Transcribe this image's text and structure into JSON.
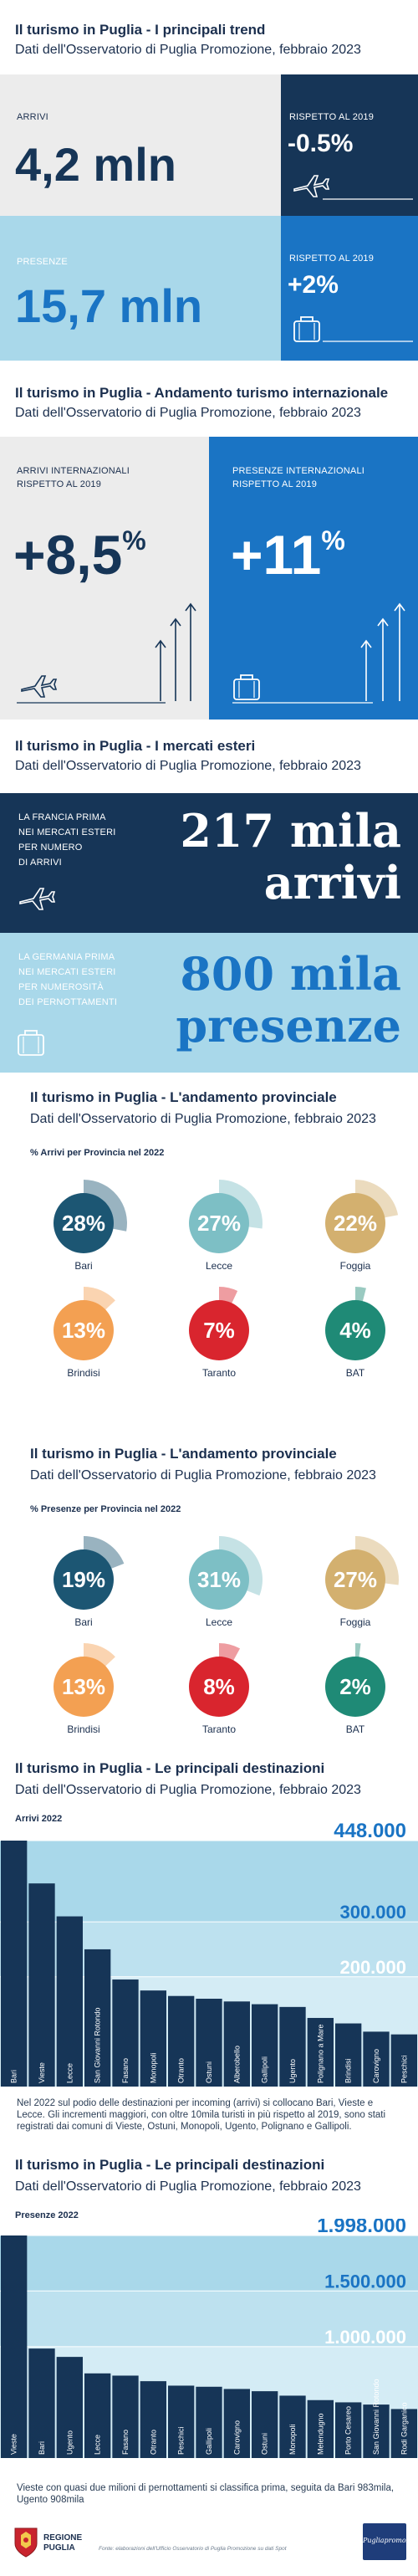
{
  "colors": {
    "navy": "#163557",
    "blue": "#1a74c4",
    "light_blue": "#a9d8ea",
    "pale_grey": "#ececec",
    "bari": "#1c5673",
    "lecce": "#7dbfc5",
    "foggia": "#d3b06f",
    "brindisi": "#f3a052",
    "taranto": "#d9252e",
    "bat": "#1f8a76"
  },
  "section1": {
    "title": "Il turismo in Puglia - I principali trend",
    "subtitle": "Dati dell'Osservatorio di Puglia Promozione, febbraio 2023",
    "arrivi_label": "ARRIVI",
    "arrivi_value": "4,2 mln",
    "arrivi_delta_label": "RISPETTO AL 2019",
    "arrivi_delta_value": "-0.5%",
    "presenze_label": "PRESENZE",
    "presenze_value": "15,7 mln",
    "presenze_delta_label": "RISPETTO AL 2019",
    "presenze_delta_value": "+2%"
  },
  "section2": {
    "title": "Il turismo in Puglia - Andamento turismo internazionale",
    "subtitle": "Dati dell'Osservatorio di Puglia Promozione, febbraio 2023",
    "arrivi_label_1": "ARRIVI INTERNAZIONALI",
    "arrivi_label_2": "RISPETTO AL 2019",
    "arrivi_value": "+8,5",
    "arrivi_pct": "%",
    "presenze_label_1": "PRESENZE INTERNAZIONALI",
    "presenze_label_2": "RISPETTO AL 2019",
    "presenze_value": "+11",
    "presenze_pct": "%"
  },
  "section3": {
    "title": "Il turismo in Puglia - I mercati esteri",
    "subtitle": "Dati dell'Osservatorio di Puglia Promozione, febbraio 2023",
    "francia_lines": [
      "LA FRANCIA PRIMA",
      "NEI MERCATI ESTERI",
      "PER NUMERO",
      "DI ARRIVI"
    ],
    "francia_value_1": "217 mila",
    "francia_value_2": "arrivi",
    "germania_lines": [
      "LA GERMANIA PRIMA",
      "NEI MERCATI ESTERI",
      "PER NUMEROSITÀ",
      "DEI PERNOTTAMENTI"
    ],
    "germania_value_1": "800 mila",
    "germania_value_2": "presenze"
  },
  "section4": {
    "title": "Il turismo in Puglia - L'andamento provinciale",
    "subtitle": "Dati dell'Osservatorio di Puglia Promozione, febbraio 2023",
    "caption": "% Arrivi per Provincia nel 2022",
    "provinces": [
      {
        "name": "Bari",
        "value": "28%",
        "pct": 28,
        "color": "#1c5673"
      },
      {
        "name": "Lecce",
        "value": "27%",
        "pct": 27,
        "color": "#7dbfc5"
      },
      {
        "name": "Foggia",
        "value": "22%",
        "pct": 22,
        "color": "#d3b06f"
      },
      {
        "name": "Brindisi",
        "value": "13%",
        "pct": 13,
        "color": "#f3a052"
      },
      {
        "name": "Taranto",
        "value": "7%",
        "pct": 7,
        "color": "#d9252e"
      },
      {
        "name": "BAT",
        "value": "4%",
        "pct": 4,
        "color": "#1f8a76"
      }
    ]
  },
  "section5": {
    "title": "Il turismo in Puglia - L'andamento provinciale",
    "subtitle": "Dati dell'Osservatorio di Puglia Promozione, febbraio 2023",
    "caption": "% Presenze per Provincia nel 2022",
    "provinces": [
      {
        "name": "Bari",
        "value": "19%",
        "pct": 19,
        "color": "#1c5673"
      },
      {
        "name": "Lecce",
        "value": "31%",
        "pct": 31,
        "color": "#7dbfc5"
      },
      {
        "name": "Foggia",
        "value": "27%",
        "pct": 27,
        "color": "#d3b06f"
      },
      {
        "name": "Brindisi",
        "value": "13%",
        "pct": 13,
        "color": "#f3a052"
      },
      {
        "name": "Taranto",
        "value": "8%",
        "pct": 8,
        "color": "#d9252e"
      },
      {
        "name": "BAT",
        "value": "2%",
        "pct": 2,
        "color": "#1f8a76"
      }
    ]
  },
  "section6": {
    "title": "Il turismo in Puglia - Le principali destinazioni",
    "subtitle": "Dati dell'Osservatorio di Puglia Promozione, febbraio 2023",
    "caption": "Arrivi 2022",
    "description": "Nel 2022 sul podio delle destinazioni per incoming (arrivi) si collocano Bari, Vieste e Lecce. Gli incrementi maggiori, con oltre 10mila turisti in più rispetto al 2019, sono stati registrati dai comuni di Vieste, Ostuni, Monopoli, Ugento, Polignano e Gallipoli."
  },
  "section7": {
    "title": "Il turismo in Puglia - Le principali destinazioni",
    "subtitle": "Dati dell'Osservatorio di Puglia Promozione, febbraio 2023",
    "caption": "Presenze 2022",
    "description": "Vieste con quasi due milioni di pernottamenti si classifica prima, seguita da Bari 983mila, Ugento 908mila"
  },
  "chart_data": [
    {
      "type": "bar",
      "title": "Arrivi 2022",
      "categories": [
        "Bari",
        "Vieste",
        "Lecce",
        "San Giovanni Rotondo",
        "Fasano",
        "Monopoli",
        "Otranto",
        "Ostuni",
        "Alberobello",
        "Gallipoli",
        "Ugento",
        "Polignano a Mare",
        "Brindisi",
        "Carovigno",
        "Peschici"
      ],
      "values": [
        448000,
        370000,
        310000,
        250000,
        195000,
        175000,
        165000,
        160000,
        155000,
        150000,
        145000,
        125000,
        115000,
        100000,
        95000
      ],
      "ylim": [
        0,
        448000
      ],
      "yticks": [
        "448.000",
        "300.000",
        "200.000"
      ]
    },
    {
      "type": "bar",
      "title": "Presenze 2022",
      "categories": [
        "Vieste",
        "Bari",
        "Ugento",
        "Lecce",
        "Fasano",
        "Otranto",
        "Peschici",
        "Gallipoli",
        "Carovigno",
        "Ostuni",
        "Monopoli",
        "Melendugno",
        "Porto Cesareo",
        "San Giovanni Rotondo",
        "Rodi Garganico"
      ],
      "values": [
        1998000,
        983000,
        908000,
        760000,
        740000,
        690000,
        650000,
        640000,
        620000,
        600000,
        560000,
        520000,
        500000,
        480000,
        440000
      ],
      "ylim": [
        0,
        1998000
      ],
      "yticks": [
        "1.998.000",
        "1.500.000",
        "1.000.000"
      ]
    }
  ],
  "footer": {
    "logo_text_1": "REGIONE",
    "logo_text_2": "PUGLIA",
    "note": "Fonte: elaborazioni dell'Ufficio Osservatorio di Puglia Promozione su dati Spot",
    "partner_logo": "Pugliapromozione"
  }
}
